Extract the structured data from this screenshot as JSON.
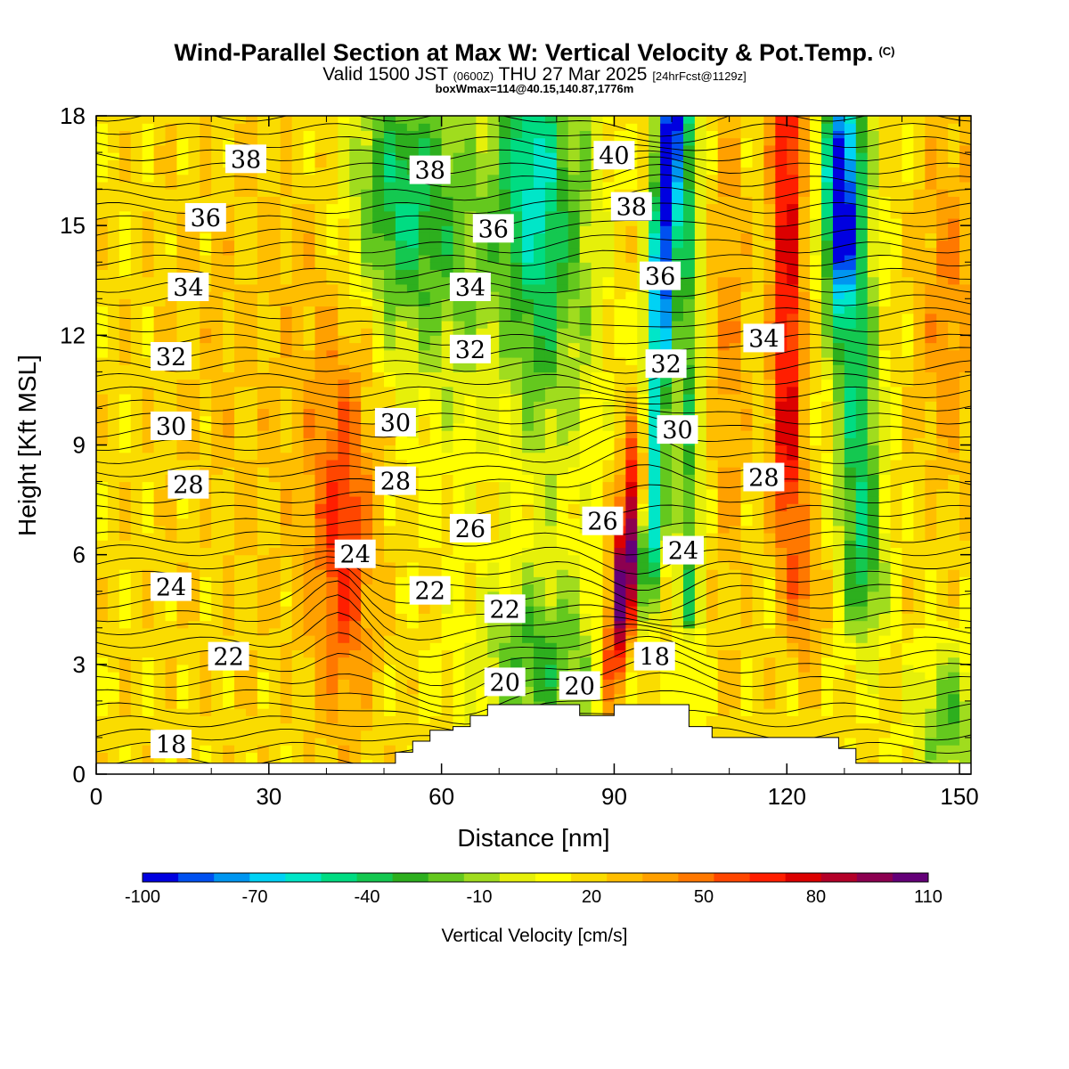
{
  "header": {
    "title": "Wind-Parallel Section at Max W: Vertical Velocity & Pot.Temp.",
    "title_mark": "(C)",
    "valid_prefix": "Valid 1500 JST",
    "valid_utc": "(0600Z)",
    "valid_date": "THU 27 Mar 2025",
    "forecast": "[24hrFcst@1129z]",
    "box_info": "boxWmax=114@40.15,140.87,1776m"
  },
  "chart_data": {
    "type": "heatmap",
    "xlabel": "Distance [nm]",
    "ylabel": "Height [Kft MSL]",
    "xlim": [
      0,
      152
    ],
    "ylim": [
      0,
      18
    ],
    "x_ticks": [
      0,
      30,
      60,
      90,
      120,
      150
    ],
    "y_ticks": [
      0,
      3,
      6,
      9,
      12,
      15,
      18
    ],
    "colorbar": {
      "label": "Vertical Velocity [cm/s]",
      "min": -100,
      "max": 110,
      "tick_values": [
        -100,
        -70,
        -40,
        -10,
        20,
        50,
        80,
        110
      ],
      "colors": [
        "#0000e0",
        "#0050f0",
        "#0096f0",
        "#00d2f5",
        "#00e6c8",
        "#00dc82",
        "#14c850",
        "#2daf1e",
        "#64c81e",
        "#a0dc1e",
        "#e6f00a",
        "#ffff00",
        "#fadc00",
        "#ffbe00",
        "#ffa000",
        "#ff7800",
        "#ff4600",
        "#ff1e00",
        "#dc0000",
        "#b40028",
        "#8c0050",
        "#640078"
      ]
    },
    "temperature_labels": [
      {
        "text": "38",
        "x": 26,
        "y": 16.8
      },
      {
        "text": "36",
        "x": 19,
        "y": 15.2
      },
      {
        "text": "34",
        "x": 16,
        "y": 13.3
      },
      {
        "text": "32",
        "x": 13,
        "y": 11.4
      },
      {
        "text": "30",
        "x": 13,
        "y": 9.5
      },
      {
        "text": "28",
        "x": 16,
        "y": 7.9
      },
      {
        "text": "24",
        "x": 13,
        "y": 5.1
      },
      {
        "text": "22",
        "x": 23,
        "y": 3.2
      },
      {
        "text": "18",
        "x": 13,
        "y": 0.8
      },
      {
        "text": "38",
        "x": 58,
        "y": 16.5
      },
      {
        "text": "36",
        "x": 69,
        "y": 14.9
      },
      {
        "text": "34",
        "x": 65,
        "y": 13.3
      },
      {
        "text": "32",
        "x": 65,
        "y": 11.6
      },
      {
        "text": "30",
        "x": 52,
        "y": 9.6
      },
      {
        "text": "28",
        "x": 52,
        "y": 8.0
      },
      {
        "text": "26",
        "x": 65,
        "y": 6.7
      },
      {
        "text": "24",
        "x": 45,
        "y": 6.0
      },
      {
        "text": "22",
        "x": 58,
        "y": 5.0
      },
      {
        "text": "22",
        "x": 71,
        "y": 4.5
      },
      {
        "text": "20",
        "x": 71,
        "y": 2.5
      },
      {
        "text": "20",
        "x": 84,
        "y": 2.4
      },
      {
        "text": "40",
        "x": 90,
        "y": 16.9
      },
      {
        "text": "38",
        "x": 93,
        "y": 15.5
      },
      {
        "text": "36",
        "x": 98,
        "y": 13.6
      },
      {
        "text": "32",
        "x": 99,
        "y": 11.2
      },
      {
        "text": "30",
        "x": 101,
        "y": 9.4
      },
      {
        "text": "26",
        "x": 88,
        "y": 6.9
      },
      {
        "text": "24",
        "x": 102,
        "y": 6.1
      },
      {
        "text": "18",
        "x": 97,
        "y": 3.2
      },
      {
        "text": "34",
        "x": 116,
        "y": 11.9
      },
      {
        "text": "28",
        "x": 116,
        "y": 8.1
      }
    ],
    "terrain": [
      [
        0,
        0.3
      ],
      [
        52,
        0.3
      ],
      [
        52,
        0.6
      ],
      [
        55,
        0.6
      ],
      [
        55,
        0.9
      ],
      [
        58,
        0.9
      ],
      [
        58,
        1.2
      ],
      [
        62,
        1.2
      ],
      [
        62,
        1.3
      ],
      [
        65,
        1.3
      ],
      [
        65,
        1.6
      ],
      [
        68,
        1.6
      ],
      [
        68,
        1.9
      ],
      [
        84,
        1.9
      ],
      [
        84,
        1.6
      ],
      [
        90,
        1.6
      ],
      [
        90,
        1.9
      ],
      [
        103,
        1.9
      ],
      [
        103,
        1.3
      ],
      [
        107,
        1.3
      ],
      [
        107,
        1.0
      ],
      [
        129,
        1.0
      ],
      [
        129,
        0.7
      ],
      [
        132,
        0.7
      ],
      [
        132,
        0.3
      ],
      [
        152,
        0.3
      ]
    ]
  }
}
